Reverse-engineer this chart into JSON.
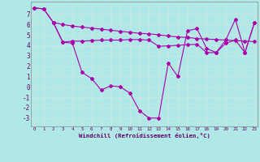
{
  "background_color": "#b0e8e8",
  "grid_color": "#d0d0d0",
  "line_color": "#aa00aa",
  "xlabel": "Windchill (Refroidissement éolien,°C)",
  "xlim": [
    -0.3,
    23.3
  ],
  "ylim": [
    -3.8,
    8.2
  ],
  "yticks": [
    -3,
    -2,
    -1,
    0,
    1,
    2,
    3,
    4,
    5,
    6,
    7
  ],
  "xticks": [
    0,
    1,
    2,
    3,
    4,
    5,
    6,
    7,
    8,
    9,
    10,
    11,
    12,
    13,
    14,
    15,
    16,
    17,
    18,
    19,
    20,
    21,
    22,
    23
  ],
  "line1_x": [
    0,
    1,
    2,
    3,
    4,
    5,
    6,
    7,
    8,
    9,
    10,
    11,
    12,
    13,
    14,
    15,
    16,
    17,
    18,
    19,
    20,
    21,
    22,
    23
  ],
  "line1_y": [
    7.6,
    7.5,
    6.2,
    6.0,
    5.85,
    5.75,
    5.65,
    5.55,
    5.45,
    5.35,
    5.25,
    5.15,
    5.1,
    5.0,
    4.9,
    4.8,
    4.75,
    4.65,
    4.6,
    4.55,
    4.5,
    4.45,
    4.4,
    4.35
  ],
  "line2_x": [
    0,
    1,
    2,
    3,
    4,
    5,
    6,
    7,
    8,
    9,
    10,
    11,
    12,
    13,
    14,
    15,
    16,
    17,
    18,
    19,
    20,
    21,
    22,
    23
  ],
  "line2_y": [
    7.6,
    7.5,
    6.2,
    4.3,
    4.4,
    4.4,
    4.45,
    4.5,
    4.5,
    4.5,
    4.55,
    4.55,
    4.5,
    3.9,
    3.95,
    4.0,
    4.05,
    4.1,
    3.3,
    3.3,
    4.2,
    4.5,
    3.3,
    6.2
  ],
  "line3_x": [
    2,
    3,
    4,
    5,
    6,
    7,
    8,
    9,
    10,
    11,
    12,
    13,
    14,
    15,
    16,
    17,
    18,
    19,
    20,
    21,
    22,
    23
  ],
  "line3_y": [
    6.2,
    4.3,
    4.2,
    1.4,
    0.8,
    -0.3,
    0.1,
    0.0,
    -0.6,
    -2.3,
    -3.0,
    -3.0,
    2.3,
    1.0,
    5.4,
    5.6,
    3.7,
    3.3,
    4.5,
    6.5,
    3.3,
    6.2
  ]
}
